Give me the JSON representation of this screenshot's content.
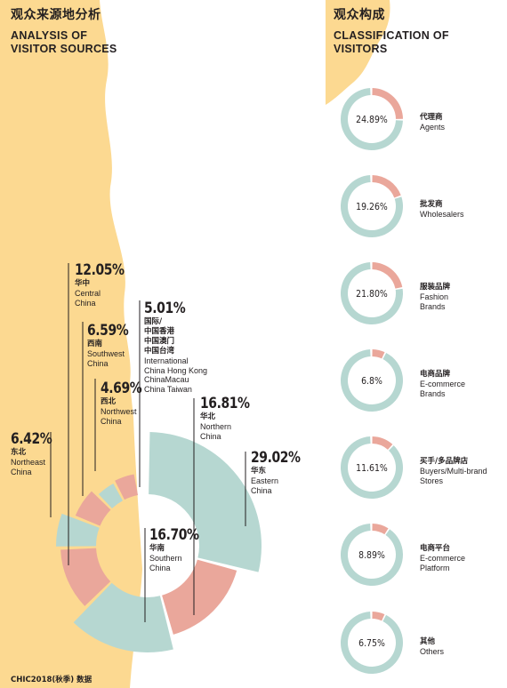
{
  "colors": {
    "teal": "#b6d7d1",
    "salmon": "#eaa79b",
    "yellow": "#fcd991",
    "text": "#231f20"
  },
  "left_title": {
    "cn": "观众来源地分析",
    "en": "ANALYSIS OF\nVISITOR SOURCES"
  },
  "right_title": {
    "cn": "观众构成",
    "en": "CLASSIFICATION OF\nVISITORS"
  },
  "footer": "CHIC2018(秋季) 数据",
  "chart_data": [
    {
      "type": "pie",
      "title": "观众来源地分析 ANALYSIS OF VISITOR SOURCES",
      "slices": [
        {
          "percent": "29.02%",
          "value": 29.02,
          "cn": "华东",
          "en": "Eastern\nChina",
          "color": "teal"
        },
        {
          "percent": "16.81%",
          "value": 16.81,
          "cn": "华北",
          "en": "Northern\nChina",
          "color": "salmon"
        },
        {
          "percent": "16.70%",
          "value": 16.7,
          "cn": "华南",
          "en": "Southern\nChina",
          "color": "teal"
        },
        {
          "percent": "12.05%",
          "value": 12.05,
          "cn": "华中",
          "en": "Central\nChina",
          "color": "salmon"
        },
        {
          "percent": "6.42%",
          "value": 6.42,
          "cn": "东北",
          "en": "Northeast\nChina",
          "color": "teal"
        },
        {
          "percent": "6.59%",
          "value": 6.59,
          "cn": "西南",
          "en": "Southwest\nChina",
          "color": "salmon"
        },
        {
          "percent": "4.69%",
          "value": 4.69,
          "cn": "西北",
          "en": "Northwest\nChina",
          "color": "teal"
        },
        {
          "percent": "5.01%",
          "value": 5.01,
          "cn": "国际/\n中国香港\n中国澳门\n中国台湾",
          "en": "International\nChina Hong Kong\nChinaMacau\nChina Taiwan",
          "color": "salmon"
        }
      ]
    },
    {
      "type": "pie",
      "title": "观众构成 CLASSIFICATION OF VISITORS",
      "items": [
        {
          "percent": "24.89%",
          "value": 24.89,
          "cn": "代理商",
          "en": "Agents"
        },
        {
          "percent": "19.26%",
          "value": 19.26,
          "cn": "批发商",
          "en": "Wholesalers"
        },
        {
          "percent": "21.80%",
          "value": 21.8,
          "cn": "服装品牌",
          "en": "Fashion\nBrands"
        },
        {
          "percent": "6.8%",
          "value": 6.8,
          "cn": "电商品牌",
          "en": "E-commerce\nBrands"
        },
        {
          "percent": "11.61%",
          "value": 11.61,
          "cn": "买手/多品牌店",
          "en": "Buyers/Multi-brand\nStores"
        },
        {
          "percent": "8.89%",
          "value": 8.89,
          "cn": "电商平台",
          "en": "E-commerce\nPlatform"
        },
        {
          "percent": "6.75%",
          "value": 6.75,
          "cn": "其他",
          "en": "Others"
        }
      ]
    }
  ]
}
